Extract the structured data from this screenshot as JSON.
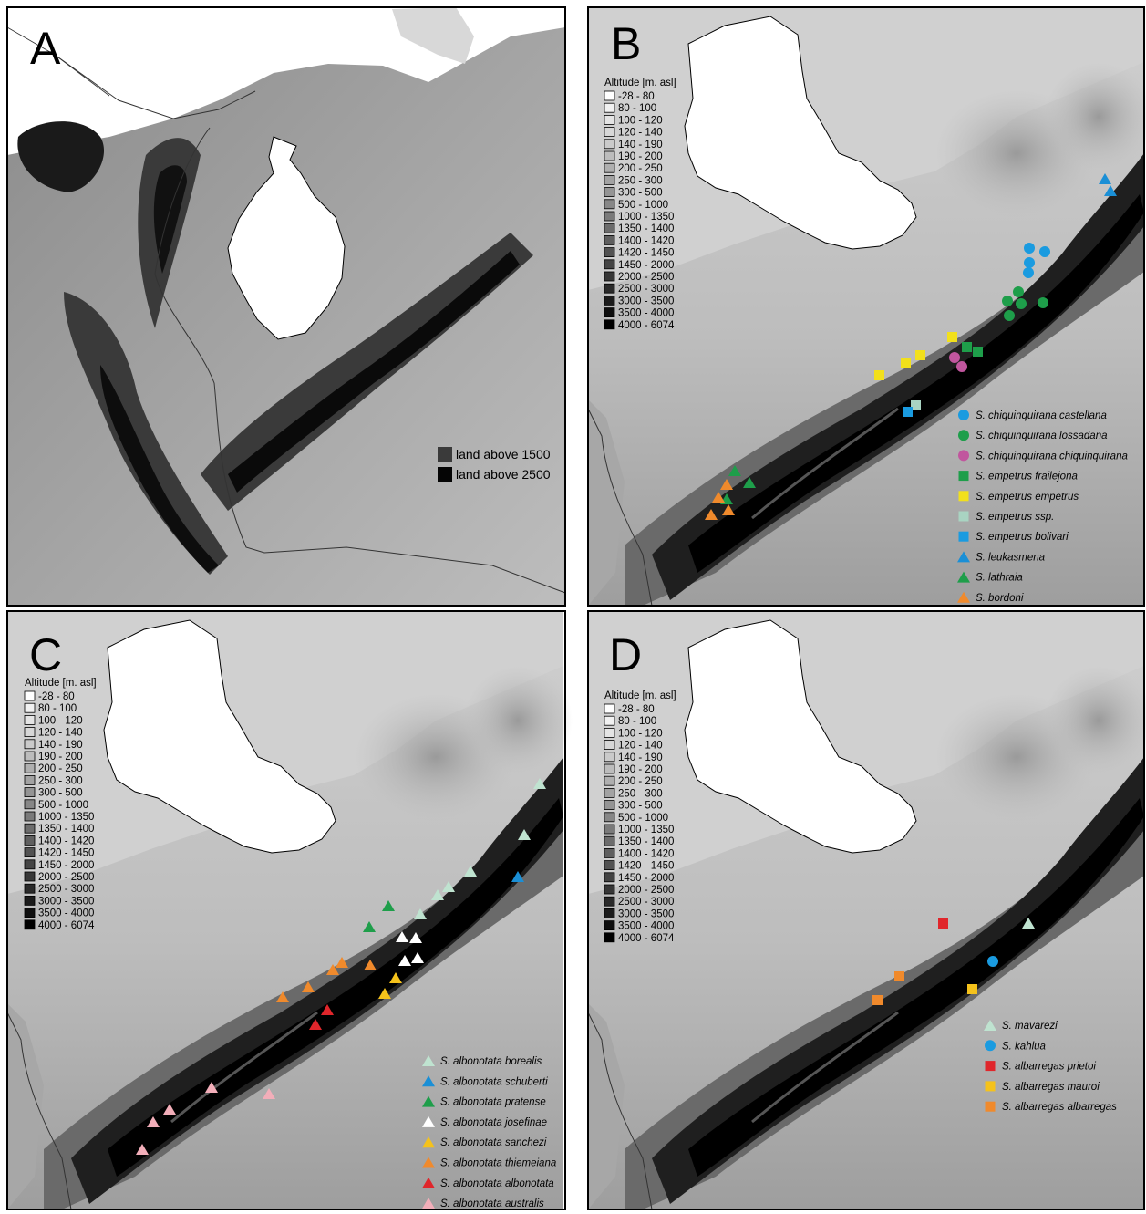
{
  "figure": {
    "panels": [
      {
        "letter": "A"
      },
      {
        "letter": "B"
      },
      {
        "letter": "C"
      },
      {
        "letter": "D"
      }
    ],
    "relief_legend": {
      "items": [
        {
          "label": "land above 1500",
          "color": "#3a3a3a"
        },
        {
          "label": "land above 2500",
          "color": "#050505"
        }
      ]
    },
    "altitude_legend": {
      "title": "Altitude [m. asl]",
      "classes": [
        {
          "label": "-28 - 80",
          "color": "#ffffff"
        },
        {
          "label": "80 - 100",
          "color": "#f1f1f1"
        },
        {
          "label": "100 - 120",
          "color": "#e4e4e4"
        },
        {
          "label": "120 - 140",
          "color": "#d7d7d7"
        },
        {
          "label": "140 - 190",
          "color": "#cacaca"
        },
        {
          "label": "190 - 200",
          "color": "#bcbcbc"
        },
        {
          "label": "200 - 250",
          "color": "#afafaf"
        },
        {
          "label": "250 - 300",
          "color": "#a2a2a2"
        },
        {
          "label": "300 - 500",
          "color": "#949494"
        },
        {
          "label": "500 - 1000",
          "color": "#878787"
        },
        {
          "label": "1000 - 1350",
          "color": "#7a7a7a"
        },
        {
          "label": "1350 - 1400",
          "color": "#6c6c6c"
        },
        {
          "label": "1400 - 1420",
          "color": "#5f5f5f"
        },
        {
          "label": "1420 - 1450",
          "color": "#525252"
        },
        {
          "label": "1450 - 2000",
          "color": "#444444"
        },
        {
          "label": "2000 - 2500",
          "color": "#373737"
        },
        {
          "label": "2500 - 3000",
          "color": "#2a2a2a"
        },
        {
          "label": "3000 - 3500",
          "color": "#1c1c1c"
        },
        {
          "label": "3500 - 4000",
          "color": "#0f0f0f"
        },
        {
          "label": "4000 - 6074",
          "color": "#000000"
        }
      ]
    },
    "legend_B": [
      {
        "label": "S. chiquinquirana castellana",
        "shape": "circle",
        "color": "#1a9be0"
      },
      {
        "label": "S. chiquinquirana lossadana",
        "shape": "circle",
        "color": "#1e9e4a"
      },
      {
        "label": "S. chiquinquirana chiquinquirana",
        "shape": "circle",
        "color": "#c1569e"
      },
      {
        "label": "S. empetrus frailejona",
        "shape": "square",
        "color": "#1e9e4a"
      },
      {
        "label": "S. empetrus empetrus",
        "shape": "square",
        "color": "#f2e01b"
      },
      {
        "label": "S. empetrus ssp.",
        "shape": "square",
        "color": "#a9d4c2"
      },
      {
        "label": "S. empetrus bolivari",
        "shape": "square",
        "color": "#1a9be0"
      },
      {
        "label": "S. leukasmena",
        "shape": "triangle",
        "color": "#1a8fd6"
      },
      {
        "label": "S. lathraia",
        "shape": "triangle",
        "color": "#1e9e4a"
      },
      {
        "label": "S. bordoni",
        "shape": "triangle",
        "color": "#f08a2c"
      }
    ],
    "legend_C": [
      {
        "label": "S. albonotata borealis",
        "shape": "triangle",
        "color": "#bfe3d0"
      },
      {
        "label": "S. albonotata schuberti",
        "shape": "triangle",
        "color": "#1a8fd6"
      },
      {
        "label": "S. albonotata pratense",
        "shape": "triangle",
        "color": "#1e9e4a"
      },
      {
        "label": "S. albonotata josefinae",
        "shape": "triangle",
        "color": "#ffffff"
      },
      {
        "label": "S. albonotata sanchezi",
        "shape": "triangle",
        "color": "#f5c21b"
      },
      {
        "label": "S. albonotata thiemeiana",
        "shape": "triangle",
        "color": "#f08a2c"
      },
      {
        "label": "S. albonotata albonotata",
        "shape": "triangle",
        "color": "#e0262b"
      },
      {
        "label": "S. albonotata australis",
        "shape": "triangle",
        "color": "#f2aeb9"
      }
    ],
    "legend_D": [
      {
        "label": "S. mavarezi",
        "shape": "triangle",
        "color": "#bfe3d0"
      },
      {
        "label": "S. kahlua",
        "shape": "circle",
        "color": "#1a9be0"
      },
      {
        "label": "S. albarregas prietoi",
        "shape": "square",
        "color": "#e0262b"
      },
      {
        "label": "S. albarregas mauroi",
        "shape": "square",
        "color": "#f5c21b"
      },
      {
        "label": "S. albarregas albarregas",
        "shape": "square",
        "color": "#f08a2c"
      }
    ]
  }
}
